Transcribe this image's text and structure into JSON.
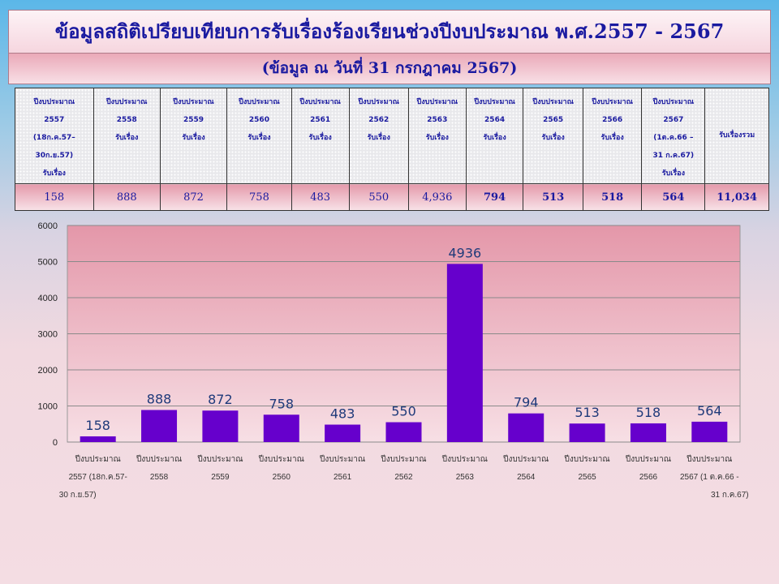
{
  "title": "ข้อมูลสถิติเปรียบเทียบการรับเรื่องร้องเรียนช่วงปีงบประมาณ พ.ศ.2557 - 2567",
  "subtitle": "(ข้อมูล ณ วันที่ 31 กรกฎาคม 2567)",
  "table": {
    "headers": [
      [
        "ปีงบประมาณ",
        "2557",
        "(18ก.ค.57–",
        "30ก.ย.57)",
        "รับเรื่อง"
      ],
      [
        "ปีงบประมาณ",
        "2558",
        "รับเรื่อง"
      ],
      [
        "ปีงบประมาณ",
        "2559",
        "รับเรื่อง"
      ],
      [
        "ปีงบประมาณ",
        "2560",
        "รับเรื่อง"
      ],
      [
        "ปีงบประมาณ",
        "2561",
        "รับเรื่อง"
      ],
      [
        "ปีงบประมาณ",
        "2562",
        "รับเรื่อง"
      ],
      [
        "ปีงบประมาณ",
        "2563",
        "รับเรื่อง"
      ],
      [
        "ปีงบประมาณ",
        "2564",
        "รับเรื่อง"
      ],
      [
        "ปีงบประมาณ",
        "2565",
        "รับเรื่อง"
      ],
      [
        "ปีงบประมาณ",
        "2566",
        "รับเรื่อง"
      ],
      [
        "ปีงบประมาณ",
        "2567",
        "(1ต.ค.66 –",
        "31 ก.ค.67)",
        "รับเรื่อง"
      ],
      [
        "รับเรื่องรวม"
      ]
    ],
    "values": [
      "158",
      "888",
      "872",
      "758",
      "483",
      "550",
      "4,936",
      "794",
      "513",
      "518",
      "564",
      "11,034"
    ],
    "bold": [
      false,
      false,
      false,
      false,
      false,
      false,
      false,
      true,
      true,
      true,
      true,
      true
    ]
  },
  "chart_data": {
    "type": "bar",
    "categories": [
      [
        "ปีงบประมาณ",
        "2557 (18ก.ค.57-",
        "30 ก.ย.57)"
      ],
      [
        "ปีงบประมาณ",
        "2558"
      ],
      [
        "ปีงบประมาณ",
        "2559"
      ],
      [
        "ปีงบประมาณ",
        "2560"
      ],
      [
        "ปีงบประมาณ",
        "2561"
      ],
      [
        "ปีงบประมาณ",
        "2562"
      ],
      [
        "ปีงบประมาณ",
        "2563"
      ],
      [
        "ปีงบประมาณ",
        "2564"
      ],
      [
        "ปีงบประมาณ",
        "2565"
      ],
      [
        "ปีงบประมาณ",
        "2566"
      ],
      [
        "ปีงบประมาณ",
        "2567 (1 ต.ค.66 -",
        "31 ก.ค.67)"
      ]
    ],
    "values": [
      158,
      888,
      872,
      758,
      483,
      550,
      4936,
      794,
      513,
      518,
      564
    ],
    "ylim": [
      0,
      6000
    ],
    "yticks": [
      0,
      1000,
      2000,
      3000,
      4000,
      5000,
      6000
    ],
    "grid": true,
    "bar_color": "#6600cc",
    "label_color": "#1f3a7a"
  }
}
